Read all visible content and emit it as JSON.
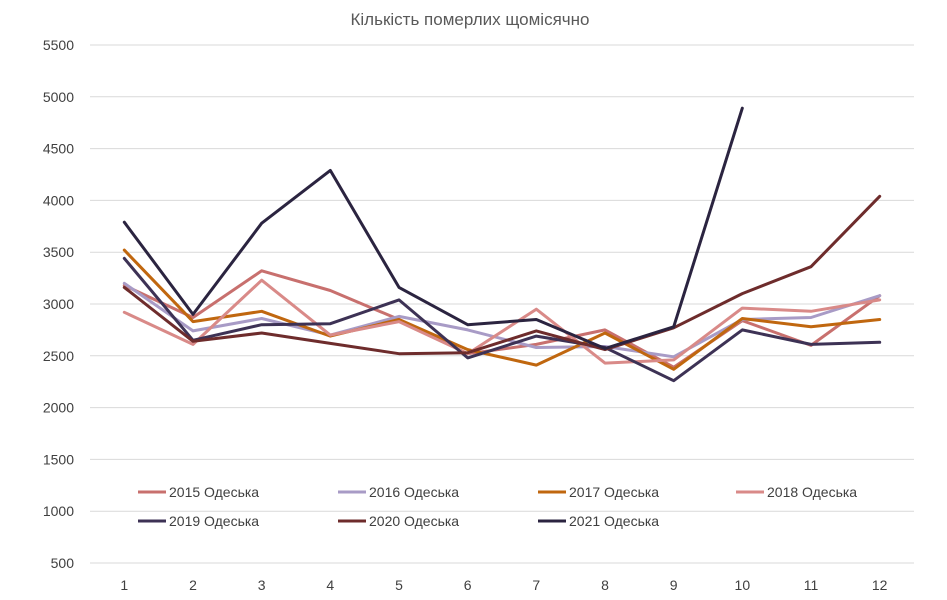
{
  "chart_data": {
    "type": "line",
    "title": "Кількість померлих щомісячно",
    "xlabel": "",
    "ylabel": "",
    "categories": [
      "1",
      "2",
      "3",
      "4",
      "5",
      "6",
      "7",
      "8",
      "9",
      "10",
      "11",
      "12"
    ],
    "ylim": [
      500,
      5500
    ],
    "yticks": [
      "500",
      "1000",
      "1500",
      "2000",
      "2500",
      "3000",
      "3500",
      "4000",
      "4500",
      "5000",
      "5500"
    ],
    "grid": true,
    "legend_position": "bottom",
    "series": [
      {
        "name": "2015 Одеська",
        "color": "#c8706e",
        "values": [
          3180,
          2870,
          3320,
          3130,
          2850,
          2520,
          2610,
          2750,
          2390,
          2840,
          2600,
          3080
        ]
      },
      {
        "name": "2016 Одеська",
        "color": "#a89bc6",
        "values": [
          3200,
          2740,
          2860,
          2700,
          2880,
          2750,
          2580,
          2590,
          2490,
          2850,
          2870,
          3080
        ]
      },
      {
        "name": "2017 Одеська",
        "color": "#c0670f",
        "values": [
          3520,
          2830,
          2930,
          2690,
          2850,
          2560,
          2410,
          2720,
          2370,
          2860,
          2780,
          2850
        ]
      },
      {
        "name": "2018 Одеська",
        "color": "#d98a88",
        "values": [
          2920,
          2610,
          3230,
          2700,
          2830,
          2520,
          2950,
          2430,
          2460,
          2960,
          2930,
          3040
        ]
      },
      {
        "name": "2019 Одеська",
        "color": "#3d3255",
        "values": [
          3440,
          2650,
          2800,
          2810,
          3040,
          2480,
          2690,
          2580,
          2260,
          2750,
          2610,
          2630
        ]
      },
      {
        "name": "2020 Одеська",
        "color": "#6e2c2c",
        "values": [
          3160,
          2640,
          2720,
          2620,
          2520,
          2530,
          2740,
          2560,
          2770,
          3100,
          3360,
          4040
        ]
      },
      {
        "name": "2021 Одеська",
        "color": "#2b2440",
        "values": [
          3790,
          2900,
          3780,
          4290,
          3160,
          2800,
          2850,
          2570,
          2780,
          4890,
          null,
          null
        ]
      }
    ]
  }
}
